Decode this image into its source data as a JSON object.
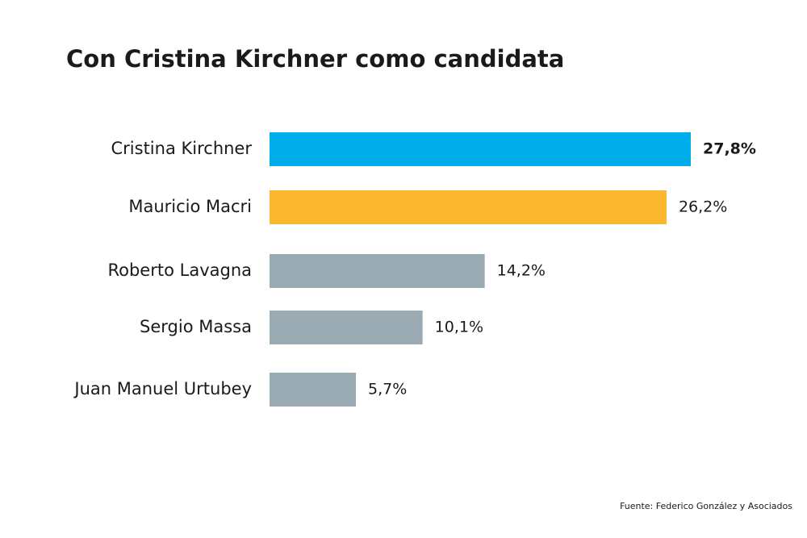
{
  "chart_data": {
    "type": "bar",
    "orientation": "horizontal",
    "title": "Con Cristina Kirchner como candidata",
    "categories": [
      "Cristina Kirchner",
      "Mauricio Macri",
      "Roberto Lavagna",
      "Sergio Massa",
      "Juan Manuel Urtubey"
    ],
    "values": [
      27.8,
      26.2,
      14.2,
      10.1,
      5.7
    ],
    "value_labels": [
      "27,8%",
      "26,2%",
      "14,2%",
      "10,1%",
      "5,7%"
    ],
    "colors": [
      "#00adeb",
      "#fbb72f",
      "#9aabb3",
      "#9aabb3",
      "#9aabb3"
    ],
    "source": "Fuente: Federico González y Asociados"
  }
}
